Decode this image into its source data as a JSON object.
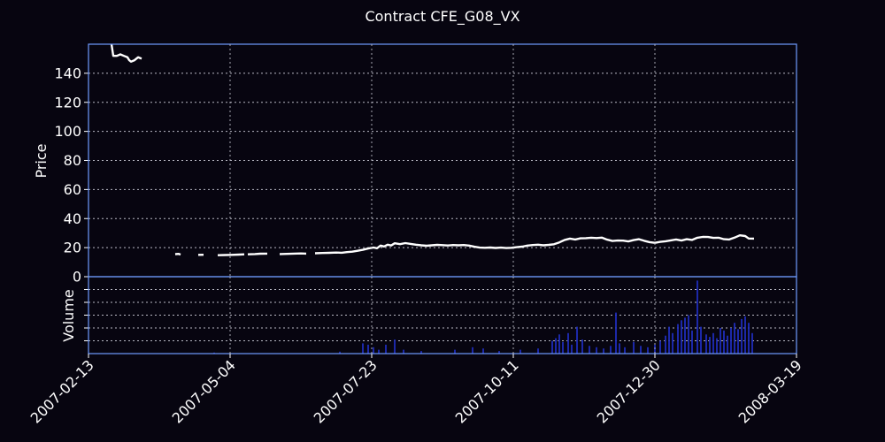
{
  "chart_data": {
    "type": "line",
    "title": "Contract CFE_G08_VX",
    "xlabel": "",
    "x_ticks": [
      "2007-02-13",
      "2007-05-04",
      "2007-07-23",
      "2007-10-11",
      "2007-12-30",
      "2008-03-19"
    ],
    "xlim": [
      "2007-02-13",
      "2008-03-19"
    ],
    "grid": true,
    "colors": {
      "background": "#070510",
      "frame": "#6f9bff",
      "price": "#ffffff",
      "volume": "#1f2db8"
    },
    "price_panel": {
      "ylabel": "Price",
      "ylim": [
        0,
        160
      ],
      "y_ticks": [
        0,
        20,
        40,
        60,
        80,
        100,
        120,
        140
      ],
      "series": [
        {
          "segments": [
            [
              [
                "2007-02-26",
                160
              ],
              [
                "2007-02-27",
                152
              ],
              [
                "2007-03-01",
                152
              ],
              [
                "2007-03-03",
                153
              ],
              [
                "2007-03-05",
                152
              ],
              [
                "2007-03-07",
                151
              ],
              [
                "2007-03-08",
                149
              ],
              [
                "2007-03-09",
                148
              ],
              [
                "2007-03-11",
                149
              ],
              [
                "2007-03-13",
                151
              ],
              [
                "2007-03-15",
                150
              ]
            ],
            [
              [
                "2007-04-03",
                15.5
              ],
              [
                "2007-04-05",
                15.7
              ],
              [
                "2007-04-06",
                15.2
              ]
            ],
            [
              [
                "2007-04-16",
                15.0
              ],
              [
                "2007-04-19",
                15.1
              ]
            ],
            [
              [
                "2007-04-27",
                14.8
              ],
              [
                "2007-05-01",
                14.9
              ],
              [
                "2007-05-05",
                15.0
              ],
              [
                "2007-05-09",
                15.2
              ],
              [
                "2007-05-12",
                15.4
              ]
            ],
            [
              [
                "2007-05-14",
                15.4
              ],
              [
                "2007-05-18",
                15.6
              ],
              [
                "2007-05-21",
                15.8
              ],
              [
                "2007-05-25",
                15.9
              ]
            ],
            [
              [
                "2007-06-01",
                15.6
              ],
              [
                "2007-06-05",
                15.7
              ],
              [
                "2007-06-09",
                15.9
              ],
              [
                "2007-06-13",
                16.0
              ],
              [
                "2007-06-16",
                15.9
              ]
            ],
            [
              [
                "2007-06-21",
                16.1
              ],
              [
                "2007-06-25",
                16.3
              ],
              [
                "2007-06-29",
                16.4
              ],
              [
                "2007-07-03",
                16.6
              ],
              [
                "2007-07-06",
                16.5
              ],
              [
                "2007-07-09",
                16.9
              ],
              [
                "2007-07-12",
                17.2
              ],
              [
                "2007-07-15",
                17.8
              ],
              [
                "2007-07-18",
                18.5
              ],
              [
                "2007-07-21",
                19.4
              ],
              [
                "2007-07-24",
                20.1
              ],
              [
                "2007-07-26",
                19.6
              ],
              [
                "2007-07-28",
                21.4
              ],
              [
                "2007-07-30",
                20.8
              ],
              [
                "2007-08-01",
                22.0
              ],
              [
                "2007-08-03",
                21.5
              ],
              [
                "2007-08-05",
                23.0
              ],
              [
                "2007-08-08",
                22.4
              ],
              [
                "2007-08-11",
                23.1
              ],
              [
                "2007-08-14",
                22.6
              ],
              [
                "2007-08-17",
                22.0
              ],
              [
                "2007-08-20",
                21.6
              ],
              [
                "2007-08-23",
                21.3
              ],
              [
                "2007-08-26",
                21.6
              ],
              [
                "2007-08-29",
                21.9
              ],
              [
                "2007-09-01",
                21.7
              ],
              [
                "2007-09-04",
                21.5
              ],
              [
                "2007-09-07",
                21.8
              ],
              [
                "2007-09-10",
                21.6
              ],
              [
                "2007-09-13",
                21.8
              ],
              [
                "2007-09-16",
                21.4
              ],
              [
                "2007-09-19",
                20.6
              ],
              [
                "2007-09-22",
                20.0
              ],
              [
                "2007-09-25",
                19.9
              ],
              [
                "2007-09-28",
                20.1
              ],
              [
                "2007-10-01",
                19.8
              ],
              [
                "2007-10-04",
                20.0
              ],
              [
                "2007-10-07",
                19.7
              ],
              [
                "2007-10-10",
                19.9
              ],
              [
                "2007-10-13",
                20.3
              ],
              [
                "2007-10-16",
                20.7
              ],
              [
                "2007-10-19",
                21.4
              ],
              [
                "2007-10-22",
                21.8
              ],
              [
                "2007-10-25",
                22.0
              ],
              [
                "2007-10-28",
                21.6
              ],
              [
                "2007-10-31",
                21.9
              ],
              [
                "2007-11-03",
                22.3
              ],
              [
                "2007-11-06",
                23.6
              ],
              [
                "2007-11-09",
                25.3
              ],
              [
                "2007-11-12",
                26.2
              ],
              [
                "2007-11-15",
                25.6
              ],
              [
                "2007-11-18",
                26.4
              ],
              [
                "2007-11-21",
                26.5
              ],
              [
                "2007-11-24",
                26.8
              ],
              [
                "2007-11-27",
                26.6
              ],
              [
                "2007-11-30",
                26.9
              ],
              [
                "2007-12-03",
                25.5
              ],
              [
                "2007-12-06",
                24.6
              ],
              [
                "2007-12-09",
                24.9
              ],
              [
                "2007-12-12",
                24.8
              ],
              [
                "2007-12-15",
                24.3
              ],
              [
                "2007-12-18",
                25.2
              ],
              [
                "2007-12-21",
                25.8
              ],
              [
                "2007-12-24",
                24.7
              ],
              [
                "2007-12-27",
                23.8
              ],
              [
                "2007-12-30",
                23.3
              ],
              [
                "2008-01-02",
                24.0
              ],
              [
                "2008-01-05",
                24.4
              ],
              [
                "2008-01-08",
                25.0
              ],
              [
                "2008-01-11",
                25.6
              ],
              [
                "2008-01-14",
                24.9
              ],
              [
                "2008-01-17",
                25.8
              ],
              [
                "2008-01-20",
                25.3
              ],
              [
                "2008-01-23",
                26.8
              ],
              [
                "2008-01-26",
                27.4
              ],
              [
                "2008-01-29",
                27.3
              ],
              [
                "2008-02-01",
                26.7
              ],
              [
                "2008-02-04",
                26.8
              ],
              [
                "2008-02-07",
                25.8
              ],
              [
                "2008-02-10",
                25.6
              ],
              [
                "2008-02-13",
                26.9
              ],
              [
                "2008-02-16",
                28.5
              ],
              [
                "2008-02-19",
                28.0
              ],
              [
                "2008-02-21",
                26.3
              ],
              [
                "2008-02-24",
                26.2
              ]
            ]
          ]
        }
      ]
    },
    "volume_panel": {
      "ylabel": "Volume",
      "grid_levels": [
        1,
        2,
        3,
        4,
        5
      ],
      "ymax": 6,
      "bars": [
        [
          "2007-04-25",
          0.08
        ],
        [
          "2007-07-05",
          0.15
        ],
        [
          "2007-07-18",
          0.8
        ],
        [
          "2007-07-21",
          0.7
        ],
        [
          "2007-07-24",
          0.5
        ],
        [
          "2007-07-27",
          0.3
        ],
        [
          "2007-07-31",
          0.7
        ],
        [
          "2007-08-05",
          1.1
        ],
        [
          "2007-08-10",
          0.3
        ],
        [
          "2007-08-20",
          0.2
        ],
        [
          "2007-09-08",
          0.3
        ],
        [
          "2007-09-18",
          0.5
        ],
        [
          "2007-09-24",
          0.4
        ],
        [
          "2007-10-03",
          0.2
        ],
        [
          "2007-10-15",
          0.3
        ],
        [
          "2007-10-25",
          0.4
        ],
        [
          "2007-11-02",
          1.0
        ],
        [
          "2007-11-04",
          1.2
        ],
        [
          "2007-11-06",
          1.5
        ],
        [
          "2007-11-08",
          0.9
        ],
        [
          "2007-11-11",
          1.6
        ],
        [
          "2007-11-13",
          0.7
        ],
        [
          "2007-11-16",
          2.1
        ],
        [
          "2007-11-19",
          1.1
        ],
        [
          "2007-11-23",
          0.6
        ],
        [
          "2007-11-27",
          0.5
        ],
        [
          "2007-12-01",
          0.4
        ],
        [
          "2007-12-05",
          0.6
        ],
        [
          "2007-12-08",
          3.2
        ],
        [
          "2007-12-10",
          0.8
        ],
        [
          "2007-12-13",
          0.5
        ],
        [
          "2007-12-18",
          0.9
        ],
        [
          "2007-12-22",
          0.6
        ],
        [
          "2007-12-26",
          0.5
        ],
        [
          "2007-12-30",
          0.7
        ],
        [
          "2008-01-02",
          1.0
        ],
        [
          "2008-01-05",
          1.4
        ],
        [
          "2008-01-07",
          2.1
        ],
        [
          "2008-01-09",
          1.6
        ],
        [
          "2008-01-12",
          2.3
        ],
        [
          "2008-01-14",
          2.6
        ],
        [
          "2008-01-16",
          2.8
        ],
        [
          "2008-01-18",
          3.0
        ],
        [
          "2008-01-20",
          1.8
        ],
        [
          "2008-01-23",
          5.7
        ],
        [
          "2008-01-25",
          2.1
        ],
        [
          "2008-01-28",
          1.5
        ],
        [
          "2008-01-30",
          1.3
        ],
        [
          "2008-02-01",
          1.6
        ],
        [
          "2008-02-03",
          1.2
        ],
        [
          "2008-02-05",
          2.0
        ],
        [
          "2008-02-07",
          1.8
        ],
        [
          "2008-02-09",
          1.4
        ],
        [
          "2008-02-11",
          2.0
        ],
        [
          "2008-02-13",
          2.4
        ],
        [
          "2008-02-15",
          1.9
        ],
        [
          "2008-02-17",
          2.7
        ],
        [
          "2008-02-19",
          2.9
        ],
        [
          "2008-02-21",
          2.4
        ],
        [
          "2008-02-23",
          1.6
        ]
      ]
    }
  }
}
